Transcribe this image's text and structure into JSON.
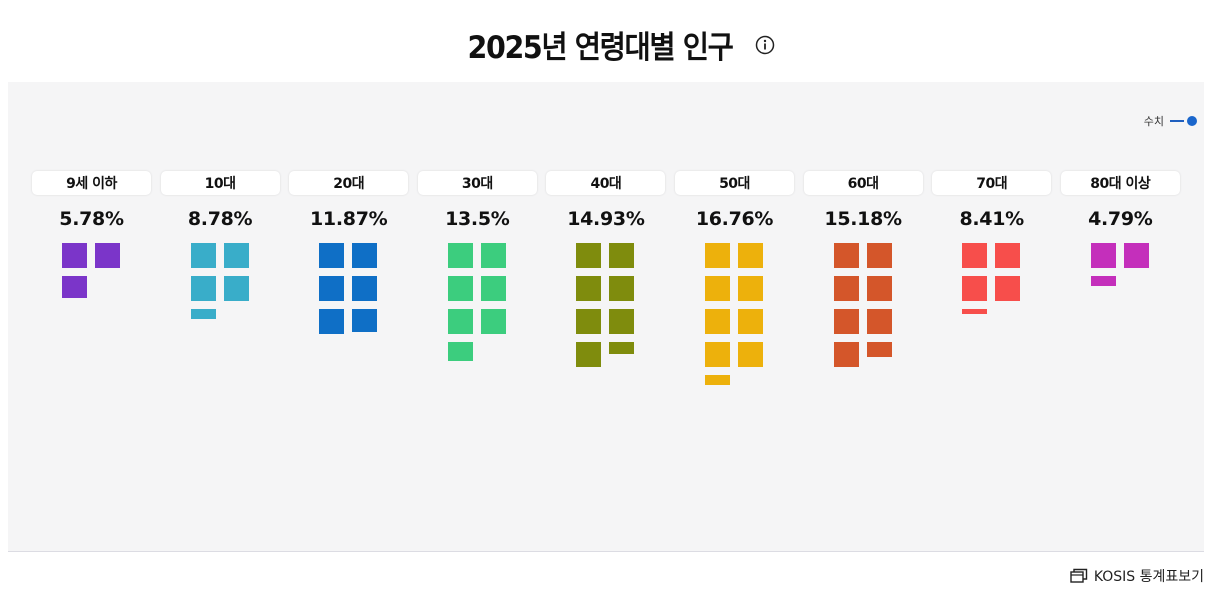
{
  "title": "2025년 연령대별 인구",
  "legend_label": "수치",
  "kosis_label": "KOSIS 통계표보기",
  "chart_data": {
    "type": "waffle",
    "title": "2025년 연령대별 인구",
    "unit_per_square": 2,
    "categories": [
      "9세 이하",
      "10대",
      "20대",
      "30대",
      "40대",
      "50대",
      "60대",
      "70대",
      "80대 이상"
    ],
    "values": [
      5.78,
      8.78,
      11.87,
      13.5,
      14.93,
      16.76,
      15.18,
      8.41,
      4.79
    ],
    "labels": [
      "5.78%",
      "8.78%",
      "11.87%",
      "13.5%",
      "14.93%",
      "16.76%",
      "15.18%",
      "8.41%",
      "4.79%"
    ],
    "colors": [
      "#7b35c9",
      "#39adc9",
      "#0f6fc6",
      "#3ccd7e",
      "#7f8c0d",
      "#edb10c",
      "#d4562a",
      "#f74e4b",
      "#c42fbb"
    ]
  }
}
